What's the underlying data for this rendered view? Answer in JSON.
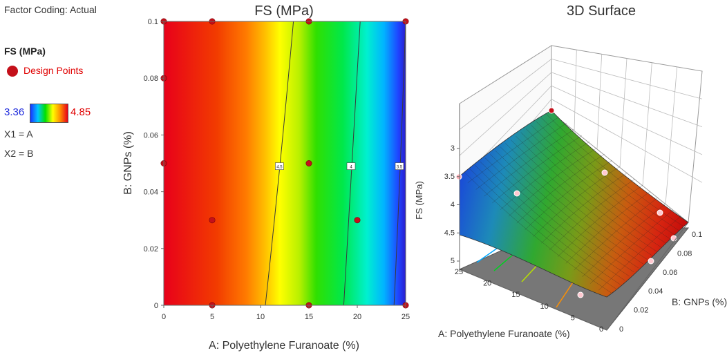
{
  "legend": {
    "factor_coding": "Factor Coding: Actual",
    "response": "FS (MPa)",
    "design_points": "Design Points",
    "scale_min": "3.36",
    "scale_max": "4.85",
    "x1": "X1 = A",
    "x2": "X2 = B"
  },
  "colors": {
    "high": "#e8001a",
    "low": "#1a32ff",
    "point": "#c4101a",
    "accent_red": "#e00000",
    "accent_blue": "#1f2bdc"
  },
  "chart_data": [
    {
      "type": "heatmap",
      "title": "FS (MPa)",
      "xlabel": "A: Polyethylene Furanoate (%)",
      "ylabel": "B: GNPs (%)",
      "xlim": [
        0,
        25
      ],
      "ylim": [
        0,
        0.1
      ],
      "xticks": [
        "0",
        "5",
        "10",
        "15",
        "20",
        "25"
      ],
      "yticks": [
        "0",
        "0.02",
        "0.04",
        "0.06",
        "0.08",
        "0.1"
      ],
      "contours": [
        {
          "label": "4.5",
          "x": [
            10.5,
            12.1,
            13.4
          ]
        },
        {
          "label": "4",
          "x": [
            18.6,
            19.5,
            20.3
          ]
        },
        {
          "label": "3.5",
          "x": [
            23.8,
            24.5,
            25.0
          ]
        }
      ],
      "design_points": [
        {
          "x": 0,
          "y": 0.1
        },
        {
          "x": 5,
          "y": 0.1
        },
        {
          "x": 15,
          "y": 0.1
        },
        {
          "x": 25,
          "y": 0.1
        },
        {
          "x": 0,
          "y": 0.08
        },
        {
          "x": 0,
          "y": 0.05
        },
        {
          "x": 15,
          "y": 0.05
        },
        {
          "x": 5,
          "y": 0.03
        },
        {
          "x": 20,
          "y": 0.03
        },
        {
          "x": 5,
          "y": 0
        },
        {
          "x": 15,
          "y": 0
        },
        {
          "x": 25,
          "y": 0
        }
      ],
      "grid": false
    },
    {
      "type": "surface",
      "title": "3D Surface",
      "xlabel": "A: Polyethylene Furanoate (%)",
      "ylabel": "B: GNPs (%)",
      "zlabel": "FS (MPa)",
      "xticks": [
        "25",
        "20",
        "15",
        "10",
        "5",
        "0"
      ],
      "yticks": [
        "0",
        "0.02",
        "0.04",
        "0.06",
        "0.08",
        "0.1"
      ],
      "zticks": [
        "3",
        "3.5",
        "4",
        "4.5",
        "5"
      ],
      "zrange": [
        3.36,
        4.85
      ]
    }
  ]
}
